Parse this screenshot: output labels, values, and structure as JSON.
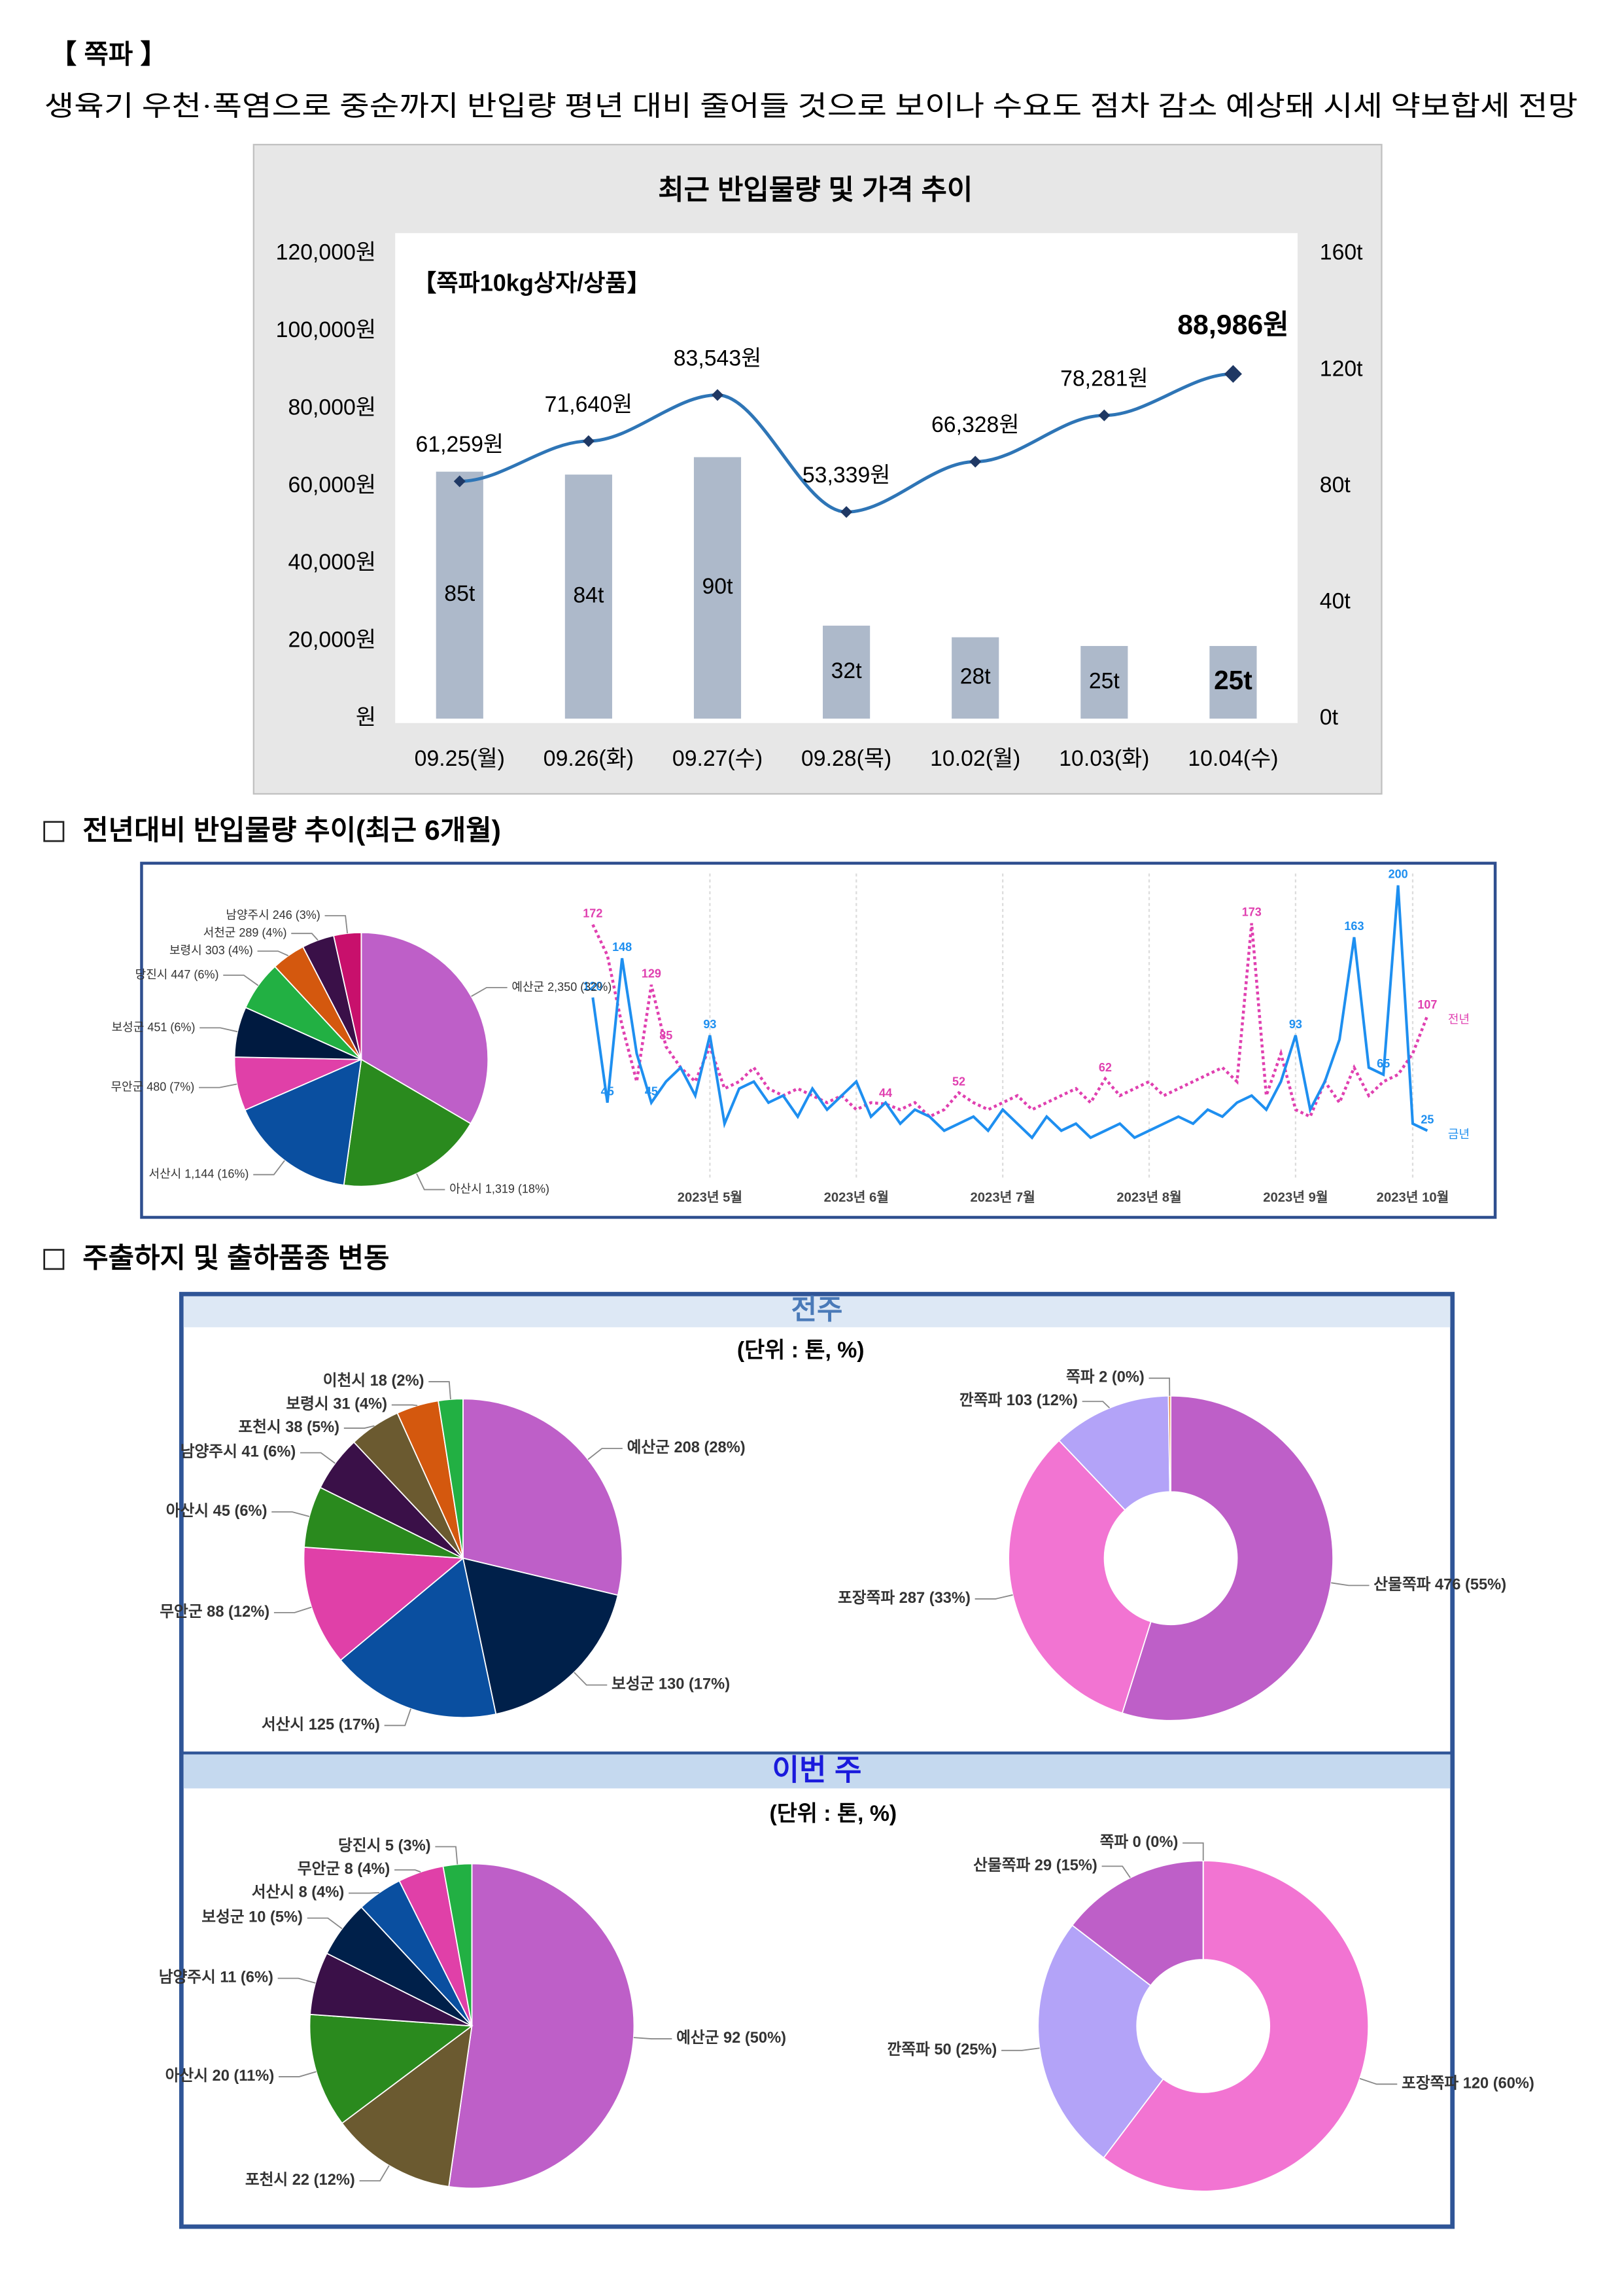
{
  "header": {
    "title": "【 쪽파 】",
    "subtitle": "생육기 우천·폭염으로 중순까지 반입량 평년 대비 줄어들 것으로 보이나 수요도 점차 감소 예상돼 시세 약보합세 전망"
  },
  "sections": [
    "전년대비 반입물량 추이(최근 6개월)",
    "주출하지 및 출하품종 변동"
  ],
  "panels": [
    {
      "title": "전주",
      "unit": "(단위 : 톤, %)"
    },
    {
      "title": "이번 주",
      "unit": "(단위 : 톤, %)"
    }
  ],
  "chart_data": [
    {
      "type": "combo",
      "title": "최근 반입물량 및 가격 추이",
      "subtitle": "【쪽파10kg상자/상품】",
      "categories": [
        "09.25(월)",
        "09.26(화)",
        "09.27(수)",
        "09.28(목)",
        "10.02(월)",
        "10.03(화)",
        "10.04(수)"
      ],
      "series": [
        {
          "type": "bar",
          "axis": "y2",
          "color": "#adb9ca",
          "values": [
            85,
            84,
            90,
            32,
            28,
            25,
            25
          ],
          "value_labels": [
            "85t",
            "84t",
            "90t",
            "32t",
            "28t",
            "25t",
            "25t"
          ]
        },
        {
          "type": "line",
          "axis": "y",
          "color": "#2e75b6",
          "marker_color": "#1f3864",
          "values": [
            61259,
            71640,
            83543,
            53339,
            66328,
            78281,
            88986
          ],
          "value_labels": [
            "61,259원",
            "71,640원",
            "83,543원",
            "53,339원",
            "66,328원",
            "78,281원",
            "88,986원"
          ]
        }
      ],
      "ylim": [
        0,
        120000
      ],
      "yticks": [
        {
          "value": 0,
          "label": "원"
        },
        {
          "value": 20000,
          "label": "20,000원"
        },
        {
          "value": 40000,
          "label": "40,000원"
        },
        {
          "value": 60000,
          "label": "60,000원"
        },
        {
          "value": 80000,
          "label": "80,000원"
        },
        {
          "value": 100000,
          "label": "100,000원"
        },
        {
          "value": 120000,
          "label": "120,000원"
        }
      ],
      "y2lim": [
        0,
        160
      ],
      "y2ticks": [
        {
          "value": 0,
          "label": "0t"
        },
        {
          "value": 40,
          "label": "40t"
        },
        {
          "value": 80,
          "label": "80t"
        },
        {
          "value": 120,
          "label": "120t"
        },
        {
          "value": 160,
          "label": "160t"
        }
      ],
      "grid": false
    },
    {
      "type": "pie",
      "categories": [
        "예산군",
        "아산시",
        "서산시",
        "무안군",
        "보성군",
        "당진시",
        "보령시",
        "서천군",
        "남양주시"
      ],
      "values": [
        2350,
        1319,
        1144,
        480,
        451,
        447,
        303,
        289,
        246
      ],
      "value_labels": [
        "2,350 (32%)",
        "1,319 (18%)",
        "1,144 (16%)",
        "480 (7%)",
        "451 (6%)",
        "447 (6%)",
        "303 (4%)",
        "289 (4%)",
        "246 (3%)"
      ],
      "colors": [
        "#be5fc8",
        "#2a8a1e",
        "#0a4fa0",
        "#e040a8",
        "#001a40",
        "#22b043",
        "#d4580e",
        "#3a1048",
        "#c8106c"
      ]
    },
    {
      "type": "line",
      "grid": true,
      "categories": [
        null,
        null,
        null,
        null,
        null,
        null,
        null,
        null,
        "2023년 5월",
        null,
        null,
        null,
        null,
        null,
        null,
        null,
        null,
        null,
        "2023년 6월",
        null,
        null,
        null,
        null,
        null,
        null,
        null,
        null,
        null,
        "2023년 7월",
        null,
        null,
        null,
        null,
        null,
        null,
        null,
        null,
        null,
        "2023년 8월",
        null,
        null,
        null,
        null,
        null,
        null,
        null,
        null,
        null,
        "2023년 9월",
        null,
        null,
        null,
        null,
        null,
        null,
        null,
        "2023년 10월",
        null
      ],
      "series": [
        {
          "name": "전년",
          "color": "#e040b0",
          "style": "dotted",
          "values": [
            172,
            150,
            100,
            60,
            129,
            85,
            70,
            60,
            85,
            55,
            60,
            70,
            55,
            50,
            55,
            50,
            45,
            50,
            40,
            45,
            44,
            40,
            45,
            35,
            40,
            52,
            45,
            40,
            45,
            50,
            40,
            45,
            50,
            55,
            45,
            62,
            50,
            55,
            60,
            50,
            55,
            60,
            65,
            70,
            60,
            173,
            50,
            80,
            40,
            35,
            60,
            45,
            70,
            50,
            60,
            65,
            80,
            107
          ],
          "value_labels": [
            "172",
            null,
            null,
            null,
            "129",
            "85",
            null,
            null,
            null,
            null,
            null,
            null,
            null,
            null,
            null,
            null,
            null,
            null,
            null,
            null,
            "44",
            null,
            null,
            null,
            null,
            "52",
            null,
            null,
            null,
            null,
            null,
            null,
            null,
            null,
            null,
            "62",
            null,
            null,
            null,
            null,
            null,
            null,
            null,
            null,
            null,
            "173",
            null,
            null,
            null,
            null,
            null,
            null,
            null,
            null,
            null,
            null,
            null,
            "107"
          ]
        },
        {
          "name": "금년",
          "color": "#1e8ff0",
          "style": "solid",
          "values": [
            120,
            45,
            148,
            80,
            45,
            60,
            70,
            50,
            93,
            30,
            55,
            60,
            45,
            50,
            35,
            55,
            40,
            50,
            60,
            35,
            45,
            30,
            40,
            35,
            25,
            30,
            35,
            25,
            40,
            30,
            20,
            35,
            25,
            30,
            20,
            25,
            30,
            20,
            25,
            30,
            35,
            30,
            40,
            35,
            45,
            50,
            40,
            60,
            93,
            40,
            60,
            90,
            163,
            70,
            65,
            200,
            30,
            25
          ],
          "value_labels": [
            "120",
            "45",
            "148",
            null,
            "45",
            null,
            null,
            null,
            "93",
            null,
            null,
            null,
            null,
            null,
            null,
            null,
            null,
            null,
            null,
            null,
            null,
            null,
            null,
            null,
            null,
            null,
            null,
            null,
            null,
            null,
            null,
            null,
            null,
            null,
            null,
            null,
            null,
            null,
            null,
            null,
            null,
            null,
            null,
            null,
            null,
            null,
            null,
            null,
            "93",
            null,
            null,
            null,
            "163",
            null,
            "65",
            "200",
            null,
            "25"
          ]
        }
      ]
    },
    {
      "type": "pie",
      "categories": [
        "예산군",
        "보성군",
        "서산시",
        "무안군",
        "아산시",
        "남양주시",
        "포천시",
        "보령시",
        "이천시"
      ],
      "values": [
        208,
        130,
        125,
        88,
        45,
        41,
        38,
        31,
        18
      ],
      "value_labels": [
        "208 (28%)",
        "130 (17%)",
        "125 (17%)",
        "88 (12%)",
        "45 (6%)",
        "41 (6%)",
        "38 (5%)",
        "31 (4%)",
        "18 (2%)"
      ],
      "colors": [
        "#be5fc8",
        "#00204a",
        "#0a4fa0",
        "#e040a8",
        "#2a8a1e",
        "#3a1048",
        "#6b5a30",
        "#d4580e",
        "#22b043"
      ]
    },
    {
      "type": "donut",
      "categories": [
        "산물쪽파",
        "포장쪽파",
        "깐쪽파",
        "쪽파"
      ],
      "values": [
        476,
        287,
        103,
        2
      ],
      "value_labels": [
        "476 (55%)",
        "287 (33%)",
        "103 (12%)",
        "2 (0%)"
      ],
      "colors": [
        "#be5fc8",
        "#f274d2",
        "#b3a3f8",
        "#e08040"
      ]
    },
    {
      "type": "pie",
      "categories": [
        "예산군",
        "포천시",
        "아산시",
        "남양주시",
        "보성군",
        "서산시",
        "무안군",
        "당진시"
      ],
      "values": [
        92,
        22,
        20,
        11,
        10,
        8,
        8,
        5
      ],
      "value_labels": [
        "92 (50%)",
        "22 (12%)",
        "20 (11%)",
        "11 (6%)",
        "10 (5%)",
        "8 (4%)",
        "8 (4%)",
        "5 (3%)"
      ],
      "colors": [
        "#be5fc8",
        "#6b5a30",
        "#2a8a1e",
        "#3a1048",
        "#00204a",
        "#0a4fa0",
        "#e040a8",
        "#22b043"
      ]
    },
    {
      "type": "donut",
      "categories": [
        "포장쪽파",
        "깐쪽파",
        "산물쪽파",
        "쪽파"
      ],
      "values": [
        120,
        50,
        29,
        0
      ],
      "value_labels": [
        "120 (60%)",
        "50 (25%)",
        "29 (15%)",
        "0 (0%)"
      ],
      "colors": [
        "#f274d2",
        "#b3a3f8",
        "#be5fc8",
        "#e08040"
      ]
    }
  ]
}
